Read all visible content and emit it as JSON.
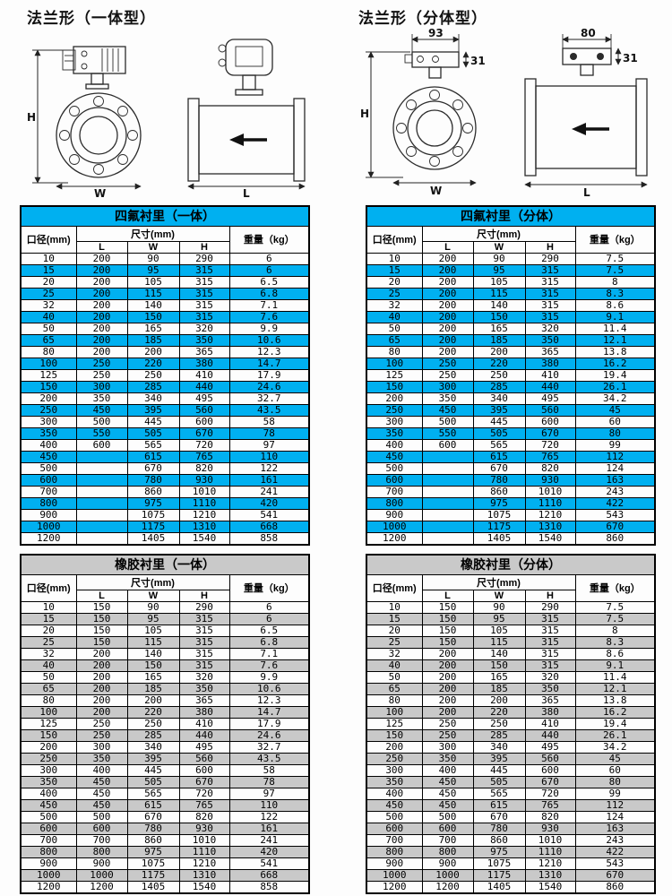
{
  "page": {
    "left_section_title": "法兰形（一体型）",
    "right_section_title": "法兰形（分体型）"
  },
  "diagrams": {
    "h_label": "H",
    "w_label": "W",
    "l_label": "L",
    "split_front_width": "93",
    "split_front_height": "31",
    "split_side_width": "80",
    "split_side_height": "31"
  },
  "table_headers": {
    "diameter": "口径(mm)",
    "size": "尺寸(mm)",
    "l": "L",
    "w": "W",
    "h": "H",
    "weight": "重量（kg）"
  },
  "colors": {
    "accent_cyan": "#00b0f0",
    "stripe_gray": "#c9c9c9",
    "border_black": "#000000"
  },
  "tables": [
    {
      "title": "四氟衬里（一体）",
      "theme": "cyan",
      "rows": [
        [
          "10",
          "200",
          "90",
          "290",
          "6"
        ],
        [
          "15",
          "200",
          "95",
          "315",
          "6"
        ],
        [
          "20",
          "200",
          "105",
          "315",
          "6.5"
        ],
        [
          "25",
          "200",
          "115",
          "315",
          "6.8"
        ],
        [
          "32",
          "200",
          "140",
          "315",
          "7.1"
        ],
        [
          "40",
          "200",
          "150",
          "315",
          "7.6"
        ],
        [
          "50",
          "200",
          "165",
          "320",
          "9.9"
        ],
        [
          "65",
          "200",
          "185",
          "350",
          "10.6"
        ],
        [
          "80",
          "200",
          "200",
          "365",
          "12.3"
        ],
        [
          "100",
          "250",
          "220",
          "380",
          "14.7"
        ],
        [
          "125",
          "250",
          "250",
          "410",
          "17.9"
        ],
        [
          "150",
          "300",
          "285",
          "440",
          "24.6"
        ],
        [
          "200",
          "350",
          "340",
          "495",
          "32.7"
        ],
        [
          "250",
          "450",
          "395",
          "560",
          "43.5"
        ],
        [
          "300",
          "500",
          "445",
          "600",
          "58"
        ],
        [
          "350",
          "550",
          "505",
          "670",
          "78"
        ],
        [
          "400",
          "600",
          "565",
          "720",
          "97"
        ],
        [
          "450",
          "",
          "615",
          "765",
          "110"
        ],
        [
          "500",
          "",
          "670",
          "820",
          "122"
        ],
        [
          "600",
          "",
          "780",
          "930",
          "161"
        ],
        [
          "700",
          "",
          "860",
          "1010",
          "241"
        ],
        [
          "800",
          "",
          "975",
          "1110",
          "420"
        ],
        [
          "900",
          "",
          "1075",
          "1210",
          "541"
        ],
        [
          "1000",
          "",
          "1175",
          "1310",
          "668"
        ],
        [
          "1200",
          "",
          "1405",
          "1540",
          "858"
        ]
      ]
    },
    {
      "title": "四氟衬里（分体）",
      "theme": "cyan",
      "rows": [
        [
          "10",
          "200",
          "90",
          "290",
          "7.5"
        ],
        [
          "15",
          "200",
          "95",
          "315",
          "7.5"
        ],
        [
          "20",
          "200",
          "105",
          "315",
          "8"
        ],
        [
          "25",
          "200",
          "115",
          "315",
          "8.3"
        ],
        [
          "32",
          "200",
          "140",
          "315",
          "8.6"
        ],
        [
          "40",
          "200",
          "150",
          "315",
          "9.1"
        ],
        [
          "50",
          "200",
          "165",
          "320",
          "11.4"
        ],
        [
          "65",
          "200",
          "185",
          "350",
          "12.1"
        ],
        [
          "80",
          "200",
          "200",
          "365",
          "13.8"
        ],
        [
          "100",
          "250",
          "220",
          "380",
          "16.2"
        ],
        [
          "125",
          "250",
          "250",
          "410",
          "19.4"
        ],
        [
          "150",
          "300",
          "285",
          "440",
          "26.1"
        ],
        [
          "200",
          "350",
          "340",
          "495",
          "34.2"
        ],
        [
          "250",
          "450",
          "395",
          "560",
          "45"
        ],
        [
          "300",
          "500",
          "445",
          "600",
          "60"
        ],
        [
          "350",
          "550",
          "505",
          "670",
          "80"
        ],
        [
          "400",
          "600",
          "565",
          "720",
          "99"
        ],
        [
          "450",
          "",
          "615",
          "765",
          "112"
        ],
        [
          "500",
          "",
          "670",
          "820",
          "124"
        ],
        [
          "600",
          "",
          "780",
          "930",
          "163"
        ],
        [
          "700",
          "",
          "860",
          "1010",
          "243"
        ],
        [
          "800",
          "",
          "975",
          "1110",
          "422"
        ],
        [
          "900",
          "",
          "1075",
          "1210",
          "543"
        ],
        [
          "1000",
          "",
          "1175",
          "1310",
          "670"
        ],
        [
          "1200",
          "",
          "1405",
          "1540",
          "860"
        ]
      ]
    },
    {
      "title": "橡胶衬里（一体）",
      "theme": "gray",
      "rows": [
        [
          "10",
          "150",
          "90",
          "290",
          "6"
        ],
        [
          "15",
          "150",
          "95",
          "315",
          "6"
        ],
        [
          "20",
          "150",
          "105",
          "315",
          "6.5"
        ],
        [
          "25",
          "150",
          "115",
          "315",
          "6.8"
        ],
        [
          "32",
          "200",
          "140",
          "315",
          "7.1"
        ],
        [
          "40",
          "200",
          "150",
          "315",
          "7.6"
        ],
        [
          "50",
          "200",
          "165",
          "320",
          "9.9"
        ],
        [
          "65",
          "200",
          "185",
          "350",
          "10.6"
        ],
        [
          "80",
          "200",
          "200",
          "365",
          "12.3"
        ],
        [
          "100",
          "200",
          "220",
          "380",
          "14.7"
        ],
        [
          "125",
          "250",
          "250",
          "410",
          "17.9"
        ],
        [
          "150",
          "250",
          "285",
          "440",
          "24.6"
        ],
        [
          "200",
          "300",
          "340",
          "495",
          "32.7"
        ],
        [
          "250",
          "350",
          "395",
          "560",
          "43.5"
        ],
        [
          "300",
          "400",
          "445",
          "600",
          "58"
        ],
        [
          "350",
          "450",
          "505",
          "670",
          "78"
        ],
        [
          "400",
          "450",
          "565",
          "720",
          "97"
        ],
        [
          "450",
          "450",
          "615",
          "765",
          "110"
        ],
        [
          "500",
          "500",
          "670",
          "820",
          "122"
        ],
        [
          "600",
          "600",
          "780",
          "930",
          "161"
        ],
        [
          "700",
          "700",
          "860",
          "1010",
          "241"
        ],
        [
          "800",
          "800",
          "975",
          "1110",
          "420"
        ],
        [
          "900",
          "900",
          "1075",
          "1210",
          "541"
        ],
        [
          "1000",
          "1000",
          "1175",
          "1310",
          "668"
        ],
        [
          "1200",
          "1200",
          "1405",
          "1540",
          "858"
        ]
      ]
    },
    {
      "title": "橡胶衬里（分体）",
      "theme": "gray",
      "rows": [
        [
          "10",
          "150",
          "90",
          "290",
          "7.5"
        ],
        [
          "15",
          "150",
          "95",
          "315",
          "7.5"
        ],
        [
          "20",
          "150",
          "105",
          "315",
          "8"
        ],
        [
          "25",
          "150",
          "115",
          "315",
          "8.3"
        ],
        [
          "32",
          "200",
          "140",
          "315",
          "8.6"
        ],
        [
          "40",
          "200",
          "150",
          "315",
          "9.1"
        ],
        [
          "50",
          "200",
          "165",
          "320",
          "11.4"
        ],
        [
          "65",
          "200",
          "185",
          "350",
          "12.1"
        ],
        [
          "80",
          "200",
          "200",
          "365",
          "13.8"
        ],
        [
          "100",
          "200",
          "220",
          "380",
          "16.2"
        ],
        [
          "125",
          "250",
          "250",
          "410",
          "19.4"
        ],
        [
          "150",
          "250",
          "285",
          "440",
          "26.1"
        ],
        [
          "200",
          "300",
          "340",
          "495",
          "34.2"
        ],
        [
          "250",
          "350",
          "395",
          "560",
          "45"
        ],
        [
          "300",
          "400",
          "445",
          "600",
          "60"
        ],
        [
          "350",
          "450",
          "505",
          "670",
          "80"
        ],
        [
          "400",
          "450",
          "565",
          "720",
          "99"
        ],
        [
          "450",
          "450",
          "615",
          "765",
          "112"
        ],
        [
          "500",
          "500",
          "670",
          "820",
          "124"
        ],
        [
          "600",
          "600",
          "780",
          "930",
          "163"
        ],
        [
          "700",
          "700",
          "860",
          "1010",
          "243"
        ],
        [
          "800",
          "800",
          "975",
          "1110",
          "422"
        ],
        [
          "900",
          "900",
          "1075",
          "1210",
          "543"
        ],
        [
          "1000",
          "1000",
          "1175",
          "1310",
          "670"
        ],
        [
          "1200",
          "1200",
          "1405",
          "1540",
          "860"
        ]
      ]
    }
  ]
}
